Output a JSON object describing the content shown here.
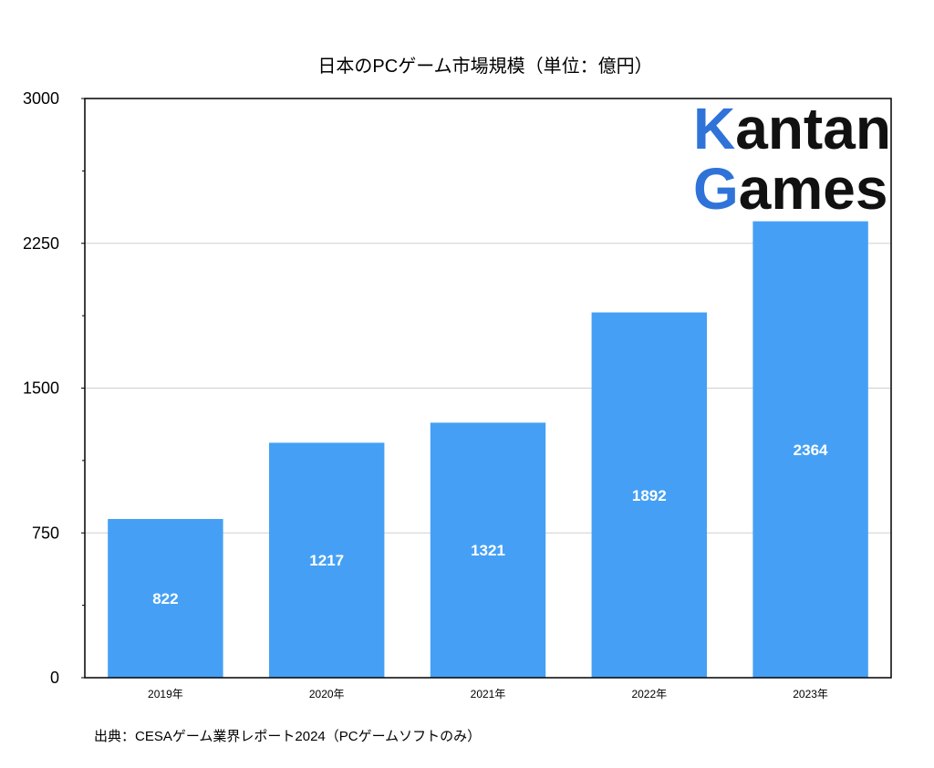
{
  "chart_data": {
    "type": "bar",
    "title": "日本のPCゲーム市場規模（単位：億円）",
    "categories": [
      "2019年",
      "2020年",
      "2021年",
      "2022年",
      "2023年"
    ],
    "values": [
      822,
      1217,
      1321,
      1892,
      2364
    ],
    "data_labels": [
      "822",
      "1217",
      "1321",
      "1892",
      "2364"
    ],
    "ylim": [
      0,
      3000
    ],
    "yticks": [
      0,
      750,
      1500,
      2250,
      3000
    ],
    "ytick_labels": [
      "0",
      "750",
      "1500",
      "2250",
      "3000"
    ],
    "grid": true,
    "bar_color": "#45a0f5",
    "source": "出典：CESAゲーム業界レポート2024（PCゲームソフトのみ）"
  },
  "logo": {
    "line1_first": "K",
    "line1_rest": "antan",
    "line2_first": "G",
    "line2_rest": "ames",
    "accent_color": "#2f73d9"
  }
}
